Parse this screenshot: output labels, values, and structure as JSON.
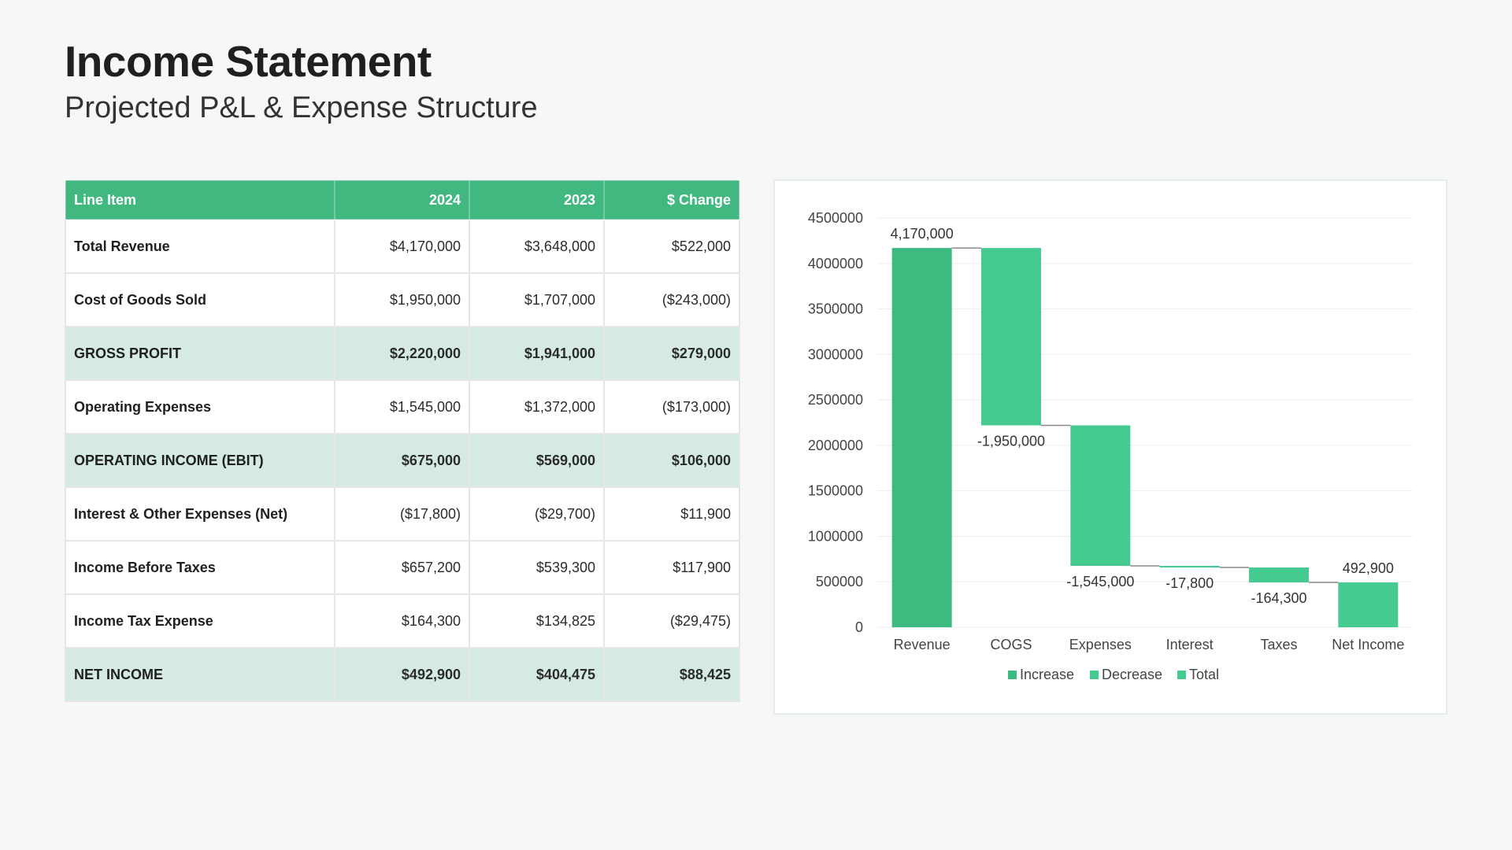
{
  "page": {
    "title": "Income Statement",
    "subtitle": "Projected P&L & Expense Structure"
  },
  "table": {
    "headers": [
      "Line Item",
      "2024",
      "2023",
      "$ Change"
    ],
    "rows": [
      {
        "label": "Total Revenue",
        "y2024": "$4,170,000",
        "y2023": "$3,648,000",
        "change": "$522,000",
        "subtotal": false
      },
      {
        "label": "Cost of Goods Sold",
        "y2024": "$1,950,000",
        "y2023": "$1,707,000",
        "change": "($243,000)",
        "subtotal": false
      },
      {
        "label": "GROSS PROFIT",
        "y2024": "$2,220,000",
        "y2023": "$1,941,000",
        "change": "$279,000",
        "subtotal": true
      },
      {
        "label": "Operating Expenses",
        "y2024": "$1,545,000",
        "y2023": "$1,372,000",
        "change": "($173,000)",
        "subtotal": false
      },
      {
        "label": "OPERATING INCOME (EBIT)",
        "y2024": "$675,000",
        "y2023": "$569,000",
        "change": "$106,000",
        "subtotal": true
      },
      {
        "label": "Interest & Other Expenses (Net)",
        "y2024": "($17,800)",
        "y2023": "($29,700)",
        "change": "$11,900",
        "subtotal": false
      },
      {
        "label": "Income Before Taxes",
        "y2024": "$657,200",
        "y2023": "$539,300",
        "change": "$117,900",
        "subtotal": false
      },
      {
        "label": "Income Tax Expense",
        "y2024": "$164,300",
        "y2023": "$134,825",
        "change": "($29,475)",
        "subtotal": false
      },
      {
        "label": "NET INCOME",
        "y2024": "$492,900",
        "y2023": "$404,475",
        "change": "$88,425",
        "subtotal": true
      }
    ]
  },
  "chart_data": {
    "type": "waterfall",
    "categories": [
      "Revenue",
      "COGS",
      "Expenses",
      "Interest",
      "Taxes",
      "Net Income"
    ],
    "values": [
      4170000,
      -1950000,
      -1545000,
      -17800,
      -164300,
      492900
    ],
    "value_labels": [
      "4,170,000",
      "-1,950,000",
      "-1,545,000",
      "-17,800",
      "-164,300",
      "492,900"
    ],
    "kinds": [
      "increase",
      "decrease",
      "decrease",
      "decrease",
      "decrease",
      "total"
    ],
    "ylim": [
      0,
      4500000
    ],
    "yticks": [
      "0",
      "500000",
      "1000000",
      "1500000",
      "2000000",
      "2500000",
      "3000000",
      "3500000",
      "4000000",
      "4500000"
    ],
    "legend": [
      "Increase",
      "Decrease",
      "Total"
    ],
    "legend_position": "bottom",
    "colors": {
      "increase": "#3dba80",
      "decrease": "#45cb8f",
      "total": "#45cb8f",
      "connector": "#888888",
      "grid": "#eeeeee"
    },
    "grid": true
  }
}
